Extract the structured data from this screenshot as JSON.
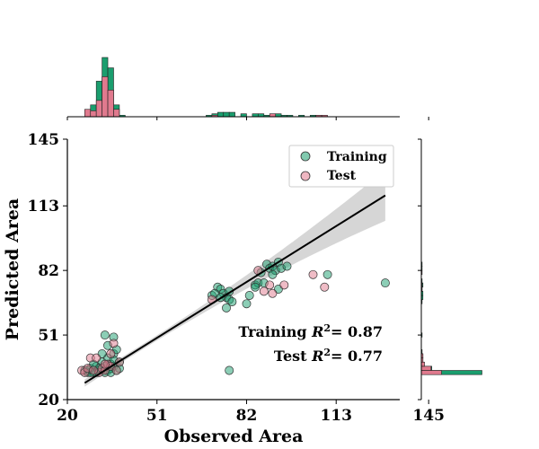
{
  "chart_data": {
    "type": "scatter",
    "xlabel": "Observed Area",
    "ylabel": "Predicted Area",
    "xlim": [
      20,
      135
    ],
    "ylim": [
      20,
      145
    ],
    "xticks": [
      "20",
      "51",
      "82",
      "113",
      "145"
    ],
    "yticks": [
      "20",
      "51",
      "82",
      "113",
      "145"
    ],
    "xtick_values": [
      20,
      51,
      82,
      113,
      145
    ],
    "ytick_values": [
      20,
      51,
      82,
      113,
      145
    ],
    "legend_position": "top-right",
    "colors": {
      "training": "#1a9e6e",
      "test": "#e07a8e",
      "fit": "#000000",
      "ci": "#c8c8c8"
    },
    "series": [
      {
        "name": "Training",
        "points": [
          [
            26,
            34
          ],
          [
            27,
            33
          ],
          [
            28,
            35
          ],
          [
            29,
            33
          ],
          [
            30,
            36
          ],
          [
            31,
            34
          ],
          [
            32,
            38
          ],
          [
            33,
            36
          ],
          [
            34,
            40
          ],
          [
            35,
            37
          ],
          [
            36,
            42
          ],
          [
            37,
            44
          ],
          [
            38,
            38
          ],
          [
            36,
            50
          ],
          [
            34,
            46
          ],
          [
            33,
            51
          ],
          [
            29,
            37
          ],
          [
            30,
            33
          ],
          [
            31,
            35
          ],
          [
            33,
            33
          ],
          [
            34,
            34
          ],
          [
            35,
            35
          ],
          [
            36,
            36
          ],
          [
            37,
            34
          ],
          [
            38,
            35
          ],
          [
            28,
            33
          ],
          [
            27,
            34
          ],
          [
            32,
            42
          ],
          [
            36,
            39
          ],
          [
            35,
            33
          ],
          [
            72,
            74
          ],
          [
            73,
            73
          ],
          [
            74,
            71
          ],
          [
            75,
            69
          ],
          [
            76,
            68
          ],
          [
            77,
            67
          ],
          [
            70,
            70
          ],
          [
            71,
            71
          ],
          [
            76,
            72
          ],
          [
            73,
            69
          ],
          [
            82,
            66
          ],
          [
            83,
            70
          ],
          [
            85,
            75
          ],
          [
            86,
            76
          ],
          [
            87,
            81
          ],
          [
            88,
            76
          ],
          [
            89,
            85
          ],
          [
            90,
            83
          ],
          [
            91,
            84
          ],
          [
            92,
            82
          ],
          [
            93,
            86
          ],
          [
            94,
            83
          ],
          [
            96,
            84
          ],
          [
            93,
            73
          ],
          [
            110,
            80
          ],
          [
            130,
            76
          ],
          [
            76,
            34
          ],
          [
            75,
            64
          ],
          [
            85,
            74
          ],
          [
            91,
            80
          ]
        ],
        "r2": "0.87"
      },
      {
        "name": "Test",
        "points": [
          [
            25,
            34
          ],
          [
            26,
            33
          ],
          [
            27,
            35
          ],
          [
            28,
            40
          ],
          [
            30,
            40
          ],
          [
            31,
            33
          ],
          [
            32,
            35
          ],
          [
            33,
            34
          ],
          [
            34,
            37
          ],
          [
            35,
            36
          ],
          [
            36,
            47
          ],
          [
            37,
            34
          ],
          [
            38,
            38
          ],
          [
            70,
            68
          ],
          [
            86,
            82
          ],
          [
            90,
            75
          ],
          [
            91,
            71
          ],
          [
            95,
            75
          ],
          [
            105,
            80
          ],
          [
            109,
            74
          ],
          [
            29,
            34
          ],
          [
            33,
            37
          ],
          [
            35,
            42
          ],
          [
            88,
            72
          ]
        ],
        "r2": "0.77"
      }
    ],
    "regression": {
      "x_start": 26,
      "x_end": 130,
      "y_start": 28,
      "y_end": 118
    },
    "annotations": [
      "Training R²= 0.87",
      "Test R²= 0.77"
    ],
    "top_histogram": {
      "bin_width": 2,
      "training": [
        [
          24,
          0
        ],
        [
          26,
          2
        ],
        [
          28,
          8
        ],
        [
          30,
          24
        ],
        [
          32,
          40
        ],
        [
          34,
          33
        ],
        [
          36,
          8
        ],
        [
          38,
          1
        ],
        [
          68,
          1
        ],
        [
          70,
          2
        ],
        [
          72,
          3
        ],
        [
          74,
          3
        ],
        [
          76,
          3
        ],
        [
          80,
          2
        ],
        [
          84,
          2
        ],
        [
          86,
          2
        ],
        [
          88,
          1
        ],
        [
          90,
          1
        ],
        [
          92,
          2
        ],
        [
          94,
          1
        ],
        [
          96,
          1
        ],
        [
          100,
          1
        ],
        [
          104,
          1
        ],
        [
          106,
          1
        ]
      ],
      "test": [
        [
          26,
          5
        ],
        [
          28,
          4
        ],
        [
          30,
          11
        ],
        [
          32,
          27
        ],
        [
          34,
          18
        ],
        [
          36,
          5
        ],
        [
          70,
          1
        ],
        [
          90,
          2
        ],
        [
          106,
          1
        ],
        [
          108,
          1
        ]
      ]
    },
    "right_histogram": {
      "bin_width": 2,
      "training": [
        [
          32,
          75
        ],
        [
          34,
          13
        ],
        [
          36,
          3
        ],
        [
          38,
          2
        ],
        [
          40,
          2
        ],
        [
          42,
          1
        ],
        [
          50,
          1
        ],
        [
          66,
          1
        ],
        [
          68,
          2
        ],
        [
          70,
          2
        ],
        [
          72,
          1
        ],
        [
          74,
          2
        ],
        [
          76,
          1
        ],
        [
          82,
          1
        ],
        [
          84,
          1
        ]
      ],
      "test": [
        [
          32,
          25
        ],
        [
          34,
          12
        ],
        [
          36,
          4
        ],
        [
          38,
          2
        ],
        [
          40,
          2
        ],
        [
          72,
          1
        ],
        [
          74,
          1
        ],
        [
          80,
          1
        ]
      ]
    }
  }
}
